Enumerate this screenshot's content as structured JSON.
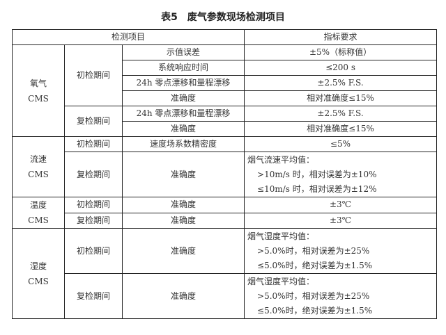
{
  "title": "表5　废气参数现场检测项目",
  "header": {
    "item": "检测项目",
    "requirement": "指标要求"
  },
  "oxygen": {
    "name": "氧气",
    "sub": "CMS",
    "initial": {
      "period": "初检期间",
      "rows": [
        {
          "item": "示值误差",
          "req": "±5%（标称值）"
        },
        {
          "item": "系统响应时间",
          "req": "≤200 s"
        },
        {
          "item": "24h 零点漂移和量程漂移",
          "req": "±2.5% F.S."
        },
        {
          "item": "准确度",
          "req": "相对准确度≤15%"
        }
      ]
    },
    "recheck": {
      "period": "复检期间",
      "rows": [
        {
          "item": "24h 零点漂移和量程漂移",
          "req": "±2.5% F.S."
        },
        {
          "item": "准确度",
          "req": "相对准确度≤15%"
        }
      ]
    }
  },
  "flow": {
    "name": "流速",
    "sub": "CMS",
    "initial": {
      "period": "初检期间",
      "item": "速度场系数精密度",
      "req": "≤5%"
    },
    "recheck": {
      "period": "复检期间",
      "item": "准确度",
      "req": [
        "烟气流速平均值：",
        ">10m/s 时，相对误差为±10%",
        "≤10m/s 时，相对误差为±12%"
      ]
    }
  },
  "temperature": {
    "name": "温度",
    "sub": "CMS",
    "initial": {
      "period": "初检期间",
      "item": "准确度",
      "req": "±3℃"
    },
    "recheck": {
      "period": "复检期间",
      "item": "准确度",
      "req": "±3℃"
    }
  },
  "humidity": {
    "name": "湿度",
    "sub": "CMS",
    "initial": {
      "period": "初检期间",
      "item": "准确度",
      "req": [
        "烟气湿度平均值：",
        ">5.0%时，相对误差为±25%",
        "≤5.0%时，绝对误差为±1.5%"
      ]
    },
    "recheck": {
      "period": "复检期间",
      "item": "准确度",
      "req": [
        "烟气湿度平均值：",
        ">5.0%时，相对误差为±25%",
        "≤5.0%时，绝对误差为±1.5%"
      ]
    }
  }
}
